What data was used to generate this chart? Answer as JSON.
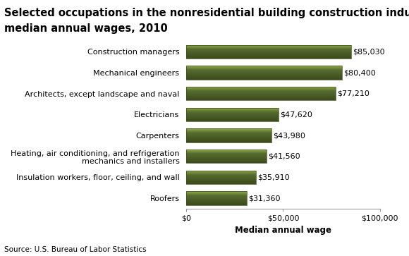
{
  "title_line1": "Selected occupations in the nonresidential building construction industry group,",
  "title_line2": "median annual wages, 2010",
  "categories": [
    "Roofers",
    "Insulation workers, floor, ceiling, and wall",
    "Heating, air conditioning, and refrigeration\nmechanics and installers",
    "Carpenters",
    "Electricians",
    "Architects, except landscape and naval",
    "Mechanical engineers",
    "Construction managers"
  ],
  "values": [
    31360,
    35910,
    41560,
    43980,
    47620,
    77210,
    80400,
    85030
  ],
  "labels": [
    "$31,360",
    "$35,910",
    "$41,560",
    "$43,980",
    "$47,620",
    "$77,210",
    "$80,400",
    "$85,030"
  ],
  "bar_color_top": "#8FA84A",
  "bar_color_mid": "#5A6E24",
  "bar_color_bot": "#3B4A1A",
  "bar_edge": "#3B4A1A",
  "xlim": [
    0,
    100000
  ],
  "xticks": [
    0,
    50000,
    100000
  ],
  "xticklabels": [
    "$0",
    "$50,000",
    "$100,000"
  ],
  "xlabel": "Median annual wage",
  "source": "Source: U.S. Bureau of Labor Statistics",
  "title_fontsize": 10.5,
  "label_fontsize": 8,
  "tick_fontsize": 8,
  "source_fontsize": 7.5,
  "xlabel_fontsize": 8.5,
  "bar_height": 0.65
}
